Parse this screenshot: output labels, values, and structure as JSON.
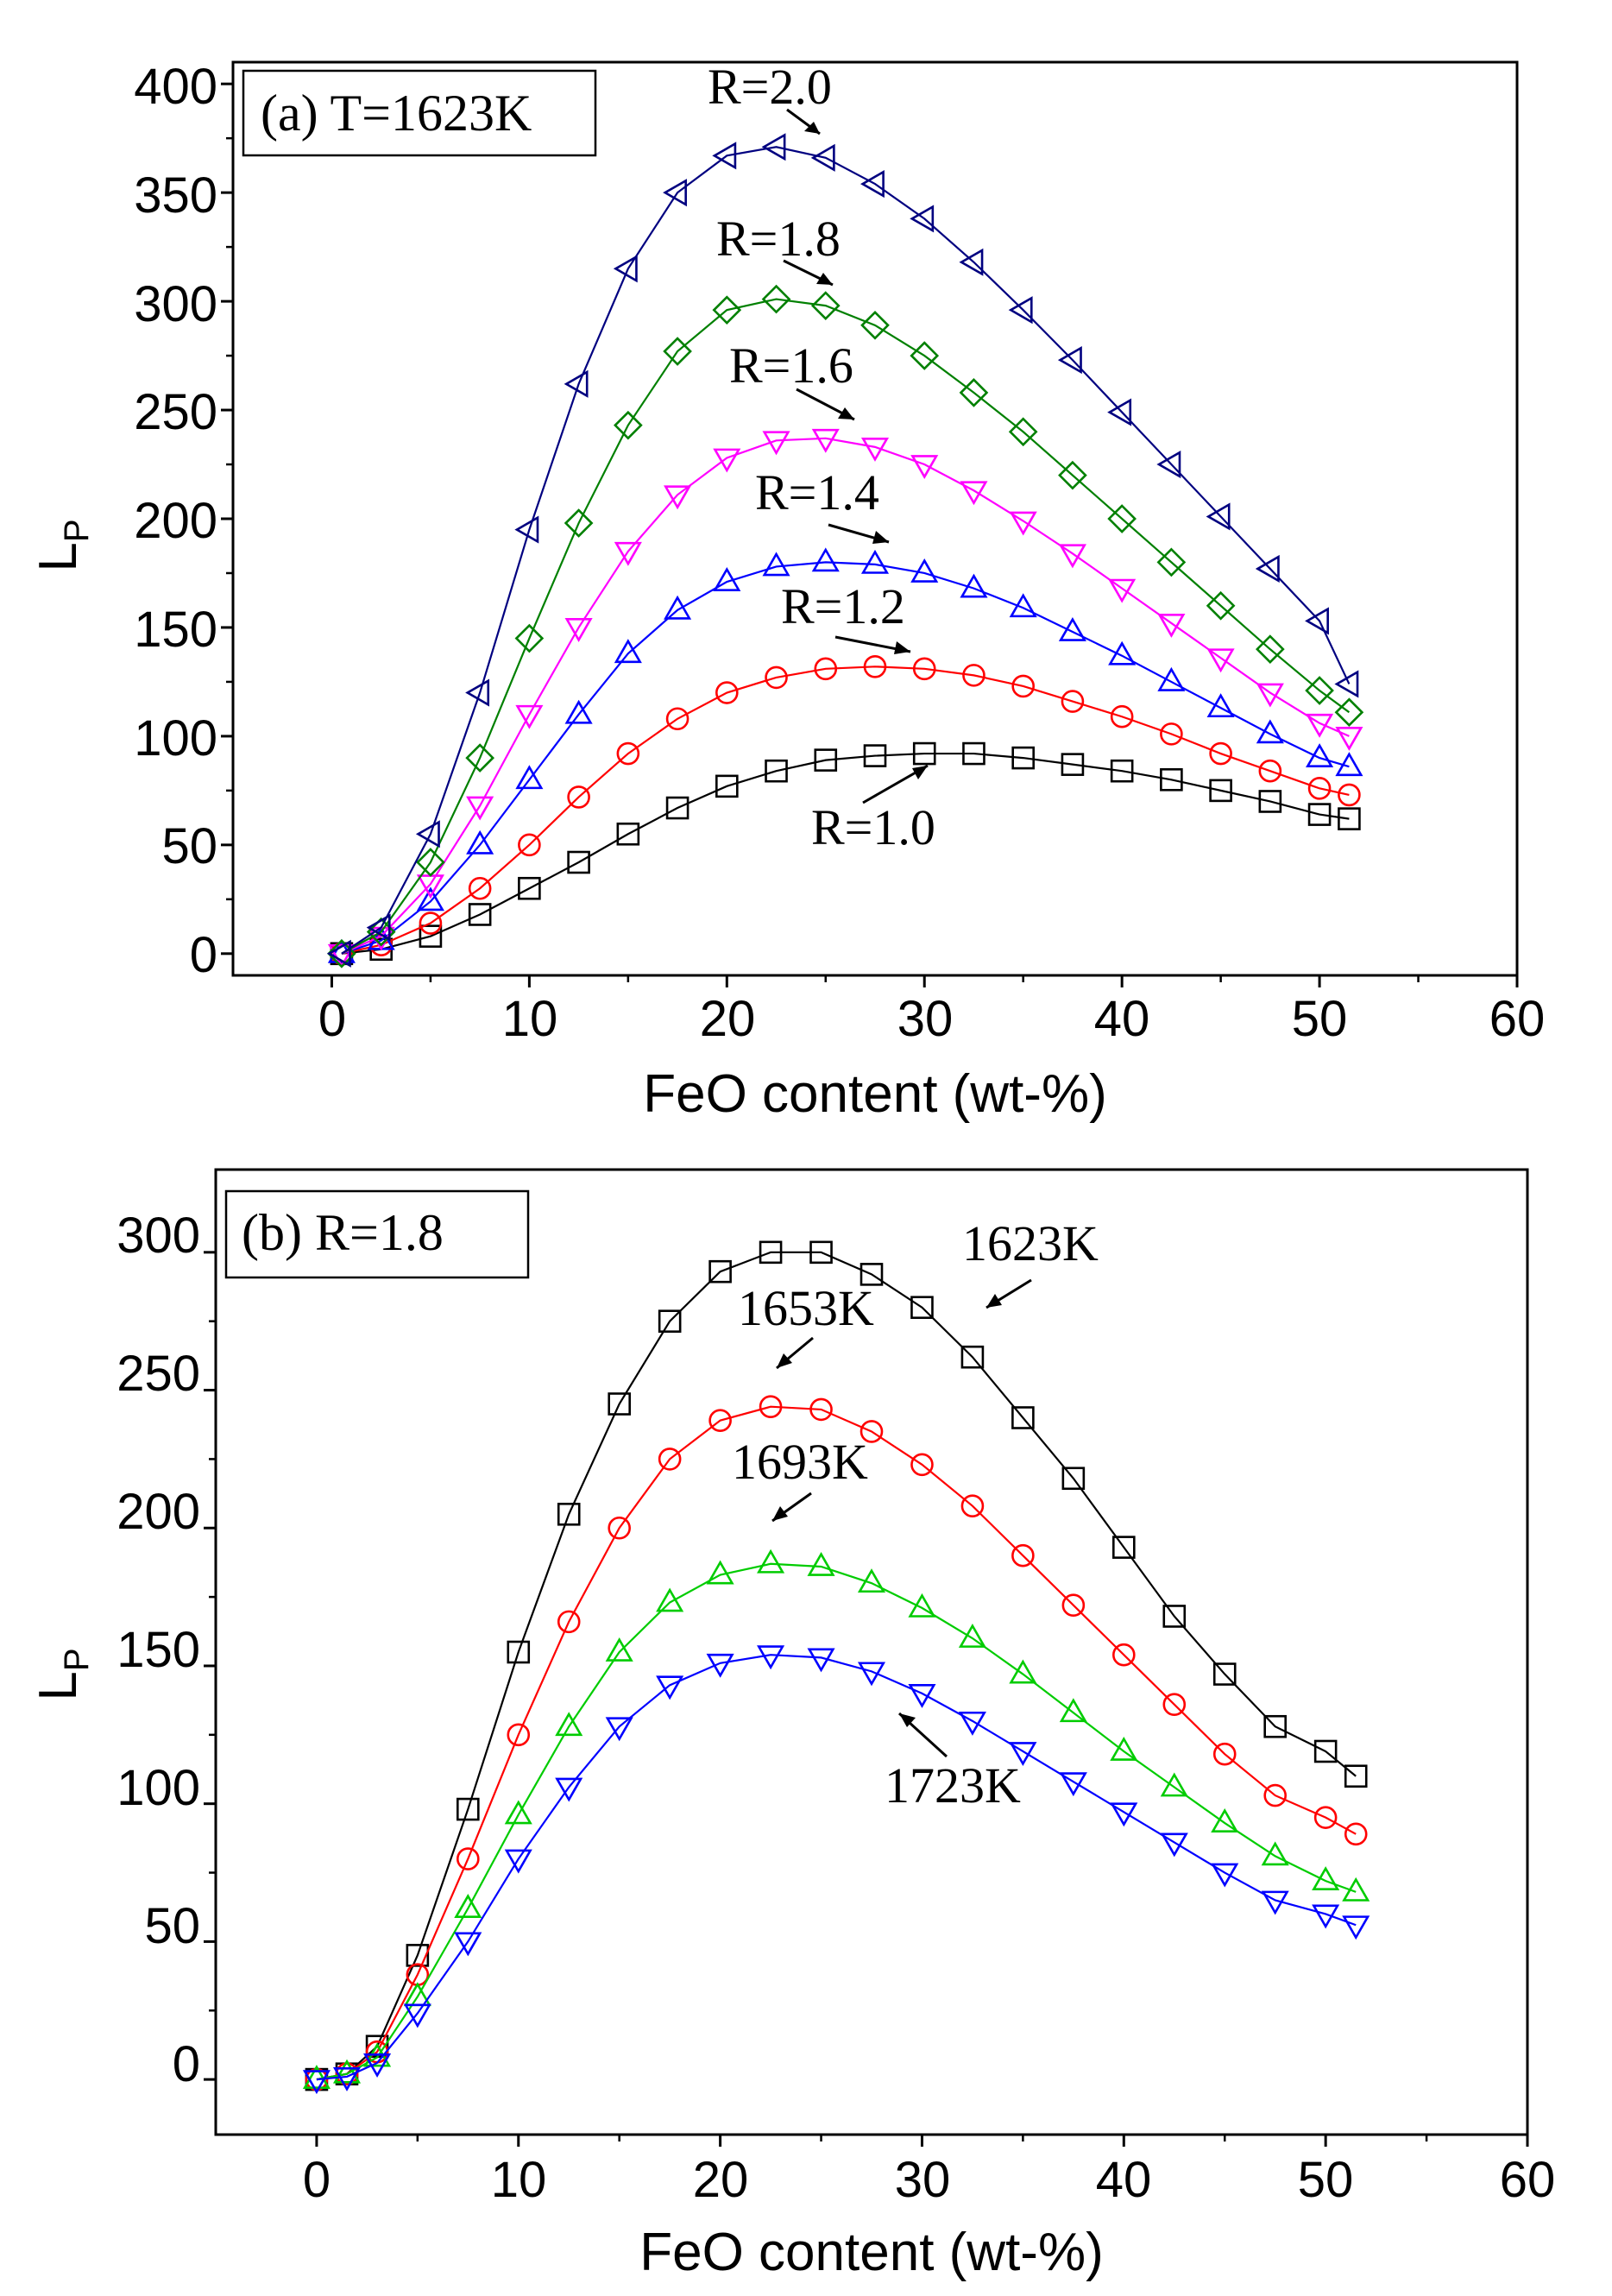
{
  "chart_data": [
    {
      "type": "line",
      "panel_label": "(a) T=1623K",
      "xlabel": "FeO content (wt-%)",
      "ylabel": "L",
      "ylabel_sub": "P",
      "xlim": [
        -5,
        60
      ],
      "ylim": [
        -10,
        410
      ],
      "x_ticks": [
        0,
        10,
        20,
        30,
        40,
        50,
        60
      ],
      "y_ticks": [
        0,
        50,
        100,
        150,
        200,
        250,
        300,
        350,
        400
      ],
      "series": [
        {
          "name": "R=1.0",
          "color": "#000000",
          "marker": "square",
          "x": [
            0.5,
            2.5,
            5,
            7.5,
            10,
            12.5,
            15,
            17.5,
            20,
            22.5,
            25,
            27.5,
            30,
            32.5,
            35,
            37.5,
            40,
            42.5,
            45,
            47.5,
            50,
            51.5
          ],
          "y": [
            0,
            2,
            8,
            18,
            30,
            42,
            55,
            67,
            77,
            84,
            89,
            91,
            92,
            92,
            90,
            87,
            84,
            80,
            75,
            70,
            64,
            62
          ]
        },
        {
          "name": "R=1.2",
          "color": "#ff0000",
          "marker": "circle",
          "x": [
            0.5,
            2.5,
            5,
            7.5,
            10,
            12.5,
            15,
            17.5,
            20,
            22.5,
            25,
            27.5,
            30,
            32.5,
            35,
            37.5,
            40,
            42.5,
            45,
            47.5,
            50,
            51.5
          ],
          "y": [
            0,
            4,
            14,
            30,
            50,
            72,
            92,
            108,
            120,
            127,
            131,
            132,
            131,
            128,
            123,
            116,
            109,
            101,
            92,
            84,
            76,
            73
          ]
        },
        {
          "name": "R=1.4",
          "color": "#0000ff",
          "marker": "triangle-up",
          "x": [
            0.5,
            2.5,
            5,
            7.5,
            10,
            12.5,
            15,
            17.5,
            20,
            22.5,
            25,
            27.5,
            30,
            32.5,
            35,
            37.5,
            40,
            42.5,
            45,
            47.5,
            50,
            51.5
          ],
          "y": [
            0,
            6,
            24,
            50,
            80,
            110,
            138,
            158,
            171,
            178,
            180,
            179,
            175,
            168,
            159,
            148,
            137,
            125,
            113,
            101,
            90,
            86
          ]
        },
        {
          "name": "R=1.6",
          "color": "#ff00ff",
          "marker": "triangle-down",
          "x": [
            0.5,
            2.5,
            5,
            7.5,
            10,
            12.5,
            15,
            17.5,
            20,
            22.5,
            25,
            27.5,
            30,
            32.5,
            35,
            37.5,
            40,
            42.5,
            45,
            47.5,
            50,
            51.5
          ],
          "y": [
            0,
            8,
            32,
            68,
            110,
            150,
            185,
            211,
            228,
            236,
            237,
            233,
            225,
            213,
            199,
            184,
            168,
            152,
            136,
            120,
            106,
            100
          ]
        },
        {
          "name": "R=1.8",
          "color": "#008000",
          "marker": "diamond",
          "x": [
            0.5,
            2.5,
            5,
            7.5,
            10,
            12.5,
            15,
            17.5,
            20,
            22.5,
            25,
            27.5,
            30,
            32.5,
            35,
            37.5,
            40,
            42.5,
            45,
            47.5,
            50,
            51.5
          ],
          "y": [
            0,
            10,
            42,
            90,
            145,
            198,
            243,
            277,
            296,
            301,
            298,
            289,
            275,
            258,
            240,
            220,
            200,
            180,
            160,
            140,
            121,
            111
          ]
        },
        {
          "name": "R=2.0",
          "color": "#000080",
          "marker": "triangle-left",
          "x": [
            0.5,
            2.5,
            5,
            7.5,
            10,
            12.5,
            15,
            17.5,
            20,
            22.5,
            25,
            27.5,
            30,
            32.5,
            35,
            37.5,
            40,
            42.5,
            45,
            47.5,
            50,
            51.5
          ],
          "y": [
            0,
            12,
            55,
            120,
            195,
            262,
            315,
            350,
            367,
            371,
            366,
            354,
            338,
            318,
            296,
            273,
            249,
            225,
            201,
            177,
            153,
            124
          ]
        }
      ],
      "annotations": [
        "R=2.0",
        "R=1.8",
        "R=1.6",
        "R=1.4",
        "R=1.2",
        "R=1.0"
      ]
    },
    {
      "type": "line",
      "panel_label": "(b) R=1.8",
      "xlabel": "FeO content (wt-%)",
      "ylabel": "L",
      "ylabel_sub": "P",
      "xlim": [
        -5,
        60
      ],
      "ylim": [
        -20,
        330
      ],
      "x_ticks": [
        0,
        10,
        20,
        30,
        40,
        50,
        60
      ],
      "y_ticks": [
        0,
        50,
        100,
        150,
        200,
        250,
        300
      ],
      "series": [
        {
          "name": "1623K",
          "color": "#000000",
          "marker": "square",
          "x": [
            0,
            1.5,
            3,
            5,
            7.5,
            10,
            12.5,
            15,
            17.5,
            20,
            22.5,
            25,
            27.5,
            30,
            32.5,
            35,
            37.5,
            40,
            42.5,
            45,
            47.5,
            50,
            51.5
          ],
          "y": [
            0,
            2,
            12,
            45,
            98,
            155,
            205,
            245,
            275,
            293,
            300,
            300,
            292,
            280,
            262,
            240,
            218,
            193,
            168,
            147,
            128,
            119,
            110
          ]
        },
        {
          "name": "1653K",
          "color": "#ff0000",
          "marker": "circle",
          "x": [
            0,
            1.5,
            3,
            5,
            7.5,
            10,
            12.5,
            15,
            17.5,
            20,
            22.5,
            25,
            27.5,
            30,
            32.5,
            35,
            37.5,
            40,
            42.5,
            45,
            47.5,
            50,
            51.5
          ],
          "y": [
            0,
            2,
            10,
            38,
            80,
            125,
            166,
            200,
            225,
            239,
            244,
            243,
            235,
            223,
            208,
            190,
            172,
            154,
            136,
            118,
            103,
            95,
            89
          ]
        },
        {
          "name": "1693K",
          "color": "#00cc00",
          "marker": "triangle-up",
          "x": [
            0,
            1.5,
            3,
            5,
            7.5,
            10,
            12.5,
            15,
            17.5,
            20,
            22.5,
            25,
            27.5,
            30,
            32.5,
            35,
            37.5,
            40,
            42.5,
            45,
            47.5,
            50,
            51.5
          ],
          "y": [
            0,
            2,
            8,
            30,
            62,
            96,
            128,
            155,
            173,
            183,
            187,
            186,
            180,
            171,
            160,
            147,
            133,
            119,
            106,
            93,
            81,
            72,
            68
          ]
        },
        {
          "name": "1723K",
          "color": "#0000ff",
          "marker": "triangle-down",
          "x": [
            0,
            1.5,
            3,
            5,
            7.5,
            10,
            12.5,
            15,
            17.5,
            20,
            22.5,
            25,
            27.5,
            30,
            32.5,
            35,
            37.5,
            40,
            42.5,
            45,
            47.5,
            50,
            51.5
          ],
          "y": [
            0,
            1,
            6,
            24,
            50,
            80,
            106,
            128,
            143,
            151,
            154,
            153,
            148,
            140,
            130,
            119,
            108,
            97,
            86,
            75,
            65,
            60,
            56
          ]
        }
      ],
      "annotations": [
        "1623K",
        "1653K",
        "1693K",
        "1723K"
      ]
    }
  ]
}
